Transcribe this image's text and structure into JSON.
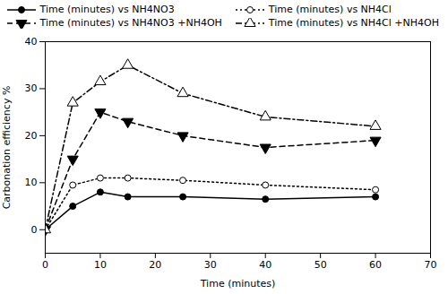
{
  "chart_data": {
    "type": "line",
    "xlabel": "Time (minutes)",
    "ylabel": "Carbonation efficiency %",
    "x": [
      0,
      5,
      10,
      15,
      25,
      40,
      60
    ],
    "series": [
      {
        "name": "Time (minutes) vs NH4NO3",
        "color": "black",
        "line_style": "solid",
        "marker": "filled_circle",
        "values": [
          0,
          5,
          8,
          7,
          7,
          6.5,
          7
        ]
      },
      {
        "name": "Time (minutes) vs NH4Cl",
        "color": "black",
        "line_style": "dotted",
        "marker": "open_circle",
        "values": [
          0,
          9.5,
          11,
          11,
          10.5,
          9.5,
          8.5
        ]
      },
      {
        "name": "Time (minutes) vs NH4NO3 +NH4OH",
        "color": "black",
        "line_style": "dashed",
        "marker": "filled_triangle_down",
        "values": [
          0,
          15,
          25,
          23,
          20,
          17.5,
          19
        ]
      },
      {
        "name": "Time (minutes) vs NH4Cl +NH4OH",
        "color": "black",
        "line_style": "dashdot",
        "marker": "open_triangle_up",
        "values": [
          0,
          27,
          31.5,
          35,
          29,
          24,
          22
        ]
      }
    ],
    "xlim": [
      0,
      70
    ],
    "ylim": [
      -5,
      40
    ],
    "xticks": [
      0,
      10,
      20,
      30,
      40,
      50,
      60,
      70
    ],
    "yticks": [
      0,
      10,
      20,
      30,
      40
    ],
    "grid": false,
    "legend": "upper right"
  }
}
